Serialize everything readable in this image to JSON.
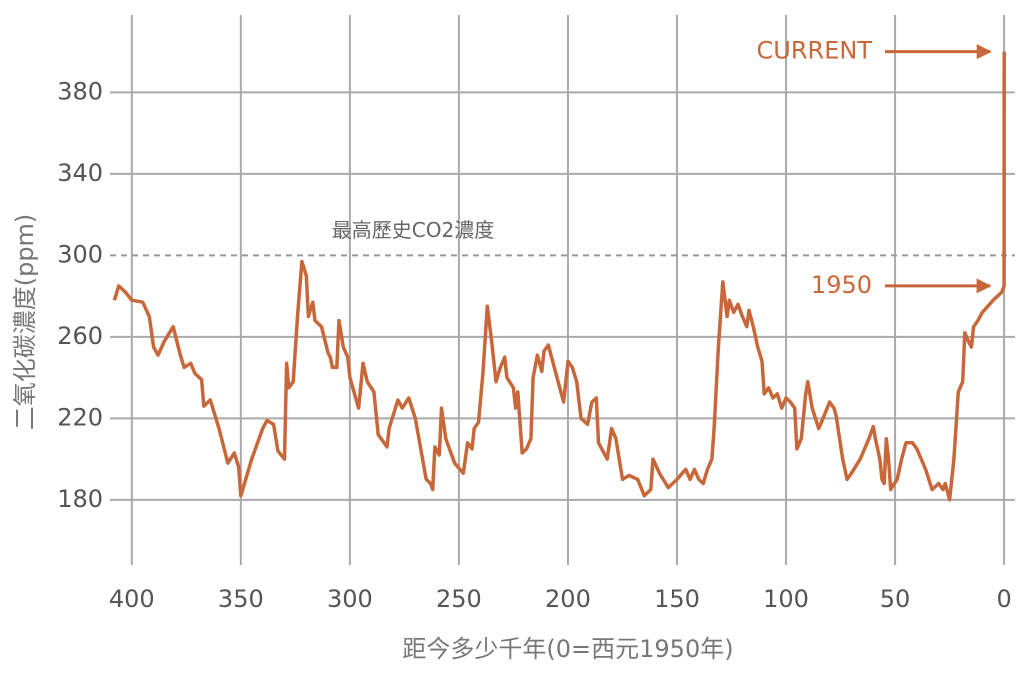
{
  "chart_data": {
    "type": "line",
    "x_label": "距今多少千年(0=西元1950年)",
    "y_label": "二氧化碳濃度(ppm)",
    "xlim": [
      410,
      -5
    ],
    "ylim": [
      148,
      418
    ],
    "xticks": [
      400,
      350,
      300,
      250,
      200,
      150,
      100,
      50,
      0
    ],
    "yticks": [
      180,
      220,
      260,
      300,
      340,
      380
    ],
    "grid": true,
    "reference_line": {
      "value": 300,
      "label": "最高歷史CO2濃度"
    },
    "annotations": [
      {
        "text": "CURRENT",
        "x": -0.06,
        "y": 400
      },
      {
        "text": "1950",
        "x": 0,
        "y": 285
      }
    ],
    "series": [
      {
        "color": "#c8683a",
        "x": [
          408,
          406,
          403,
          400,
          395,
          392,
          390,
          388,
          385,
          381,
          378,
          376,
          373,
          371,
          368,
          367,
          364,
          360,
          356,
          353,
          351,
          350,
          345,
          340,
          338,
          335,
          333,
          330,
          329,
          328,
          326,
          324,
          322,
          320,
          319,
          317,
          316,
          313,
          310,
          309,
          308,
          306,
          305,
          303,
          301,
          300,
          296,
          294,
          292,
          289,
          287,
          283,
          282,
          278,
          276,
          273,
          270,
          265,
          263,
          262,
          261,
          259,
          258,
          256,
          252,
          248,
          246,
          244,
          243,
          241,
          239,
          237,
          235,
          233,
          231,
          229,
          228,
          225,
          224,
          223,
          221,
          219,
          217,
          216,
          214,
          212,
          211,
          209,
          205,
          202,
          200,
          198,
          196,
          194,
          191,
          189,
          187,
          186,
          182,
          180,
          178,
          175,
          172,
          168,
          165,
          162,
          161,
          158,
          154,
          150,
          146,
          144,
          142,
          140,
          138,
          136,
          134,
          133,
          131,
          129,
          127,
          126,
          124,
          122,
          120,
          118,
          117,
          115,
          113,
          111,
          110,
          108,
          106,
          104,
          102,
          100,
          98,
          96,
          95,
          93,
          91,
          90,
          88,
          85,
          83,
          80,
          78,
          77,
          74,
          72,
          70,
          66,
          62,
          60,
          59,
          58,
          57,
          56,
          55,
          54,
          53,
          52,
          51,
          49,
          47,
          45,
          42,
          40,
          36,
          33,
          30,
          28,
          27,
          25,
          23,
          21,
          19,
          18,
          16,
          15,
          14,
          12,
          10,
          5,
          1,
          0,
          -0.06
        ],
        "values": [
          278,
          285,
          282,
          278,
          277,
          270,
          255,
          251,
          258,
          265,
          252,
          245,
          247,
          242,
          239,
          226,
          229,
          215,
          198,
          203,
          196,
          182,
          200,
          215,
          219,
          217,
          204,
          200,
          247,
          235,
          238,
          270,
          297,
          290,
          270,
          277,
          268,
          265,
          252,
          250,
          245,
          245,
          268,
          255,
          250,
          240,
          225,
          247,
          238,
          233,
          212,
          206,
          215,
          229,
          225,
          230,
          220,
          190,
          188,
          185,
          206,
          202,
          225,
          210,
          198,
          193,
          208,
          205,
          215,
          218,
          242,
          275,
          258,
          238,
          245,
          250,
          240,
          235,
          225,
          233,
          203,
          205,
          210,
          240,
          251,
          243,
          253,
          256,
          240,
          228,
          248,
          245,
          238,
          220,
          217,
          228,
          230,
          208,
          200,
          215,
          210,
          190,
          192,
          190,
          182,
          185,
          200,
          193,
          186,
          190,
          195,
          190,
          195,
          190,
          188,
          195,
          200,
          215,
          255,
          287,
          270,
          278,
          272,
          276,
          270,
          265,
          273,
          265,
          255,
          248,
          232,
          235,
          230,
          232,
          225,
          230,
          228,
          225,
          205,
          210,
          232,
          238,
          225,
          215,
          220,
          228,
          225,
          221,
          200,
          190,
          193,
          200,
          210,
          216,
          210,
          205,
          200,
          190,
          188,
          210,
          200,
          185,
          187,
          190,
          200,
          208,
          208,
          205,
          195,
          185,
          188,
          185,
          188,
          180,
          200,
          233,
          238,
          262,
          257,
          255,
          265,
          268,
          272,
          278,
          282,
          285,
          400
        ]
      }
    ]
  }
}
